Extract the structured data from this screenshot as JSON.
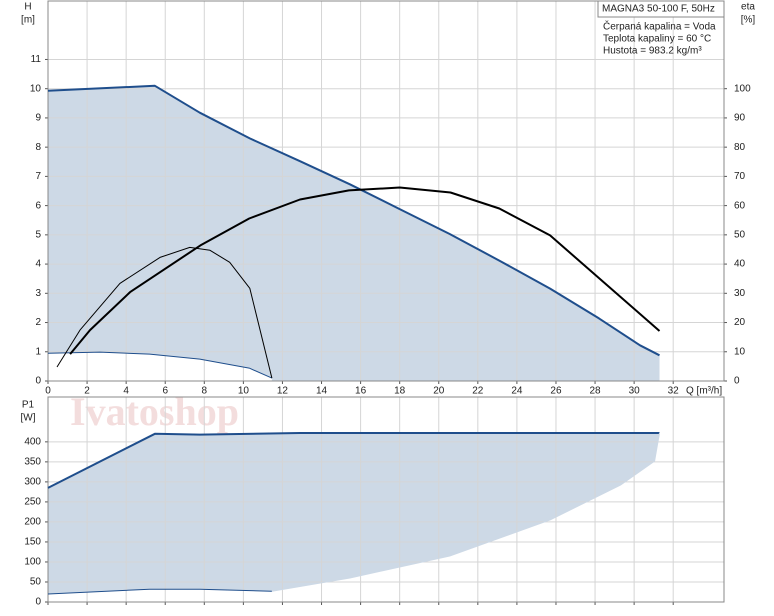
{
  "chart_data": [
    {
      "type": "line",
      "ylabel": "H",
      "yunit": "[m]",
      "y2label": "eta",
      "y2unit": "[%]",
      "xlabel": "Q [m³/h]",
      "info_title": "MAGNA3 50-100 F, 50Hz",
      "info_lines": [
        "Čerpaná kapalina = Voda",
        "Teplota kapaliny = 60 °C",
        "Hustota = 983.2 kg/m³"
      ],
      "xlim": [
        0,
        34.6
      ],
      "xticks": [
        0,
        2,
        4,
        6,
        8,
        10,
        12,
        14,
        16,
        18,
        20,
        22,
        24,
        26,
        28,
        30,
        32
      ],
      "ylim": [
        0,
        13
      ],
      "yticks": [
        0,
        1,
        2,
        3,
        4,
        5,
        6,
        7,
        8,
        9,
        10,
        11
      ],
      "y2lim": [
        0,
        130
      ],
      "y2ticks": [
        0,
        10,
        20,
        30,
        40,
        50,
        60,
        70,
        80,
        90,
        100
      ],
      "grid": true,
      "show_xtick_labels": true,
      "fill_color": "#cdd9e6",
      "series": [
        {
          "color": "#1f4e8c",
          "width": 2,
          "x": [
            0,
            5.47,
            7.77,
            10.33,
            12.9,
            15.45,
            18.0,
            20.56,
            23.1,
            25.7,
            28.2,
            30.3,
            31.3
          ],
          "values": [
            9.93,
            10.1,
            9.18,
            8.3,
            7.52,
            6.73,
            5.88,
            5.03,
            4.12,
            3.16,
            2.14,
            1.22,
            0.88
          ]
        },
        {
          "color": "#1f4e8c",
          "width": 1,
          "x": [
            0,
            2.66,
            5.2,
            7.77,
            10.3,
            11.46
          ],
          "values": [
            0.95,
            0.99,
            0.92,
            0.75,
            0.44,
            0.1
          ]
        },
        {
          "color": "#000000",
          "width": 2,
          "axis": "y2",
          "x": [
            1.13,
            2.15,
            4.2,
            7.8,
            10.3,
            12.9,
            15.4,
            18.0,
            20.6,
            23.1,
            25.7,
            28.2,
            31.3
          ],
          "values": [
            9.2,
            17.4,
            30.4,
            46.4,
            55.6,
            62.1,
            65.2,
            66.2,
            64.5,
            59,
            49.8,
            35.2,
            17.1
          ]
        },
        {
          "color": "#000000",
          "width": 1,
          "axis": "y2",
          "x": [
            0.46,
            1.64,
            3.68,
            5.73,
            7.26,
            8.29,
            9.3,
            10.33,
            11.46
          ],
          "values": [
            4.8,
            17.4,
            33.4,
            42.3,
            45.7,
            44.7,
            40.6,
            31.7,
            1.0
          ]
        }
      ]
    },
    {
      "type": "line",
      "ylabel": "P1",
      "yunit": "[W]",
      "watermark": "Ivatoshop",
      "xlim": [
        0,
        34.6
      ],
      "xticks": [
        0,
        2,
        4,
        6,
        8,
        10,
        12,
        14,
        16,
        18,
        20,
        22,
        24,
        26,
        28,
        30,
        32
      ],
      "ylim": [
        0,
        512
      ],
      "yticks": [
        0,
        50,
        100,
        150,
        200,
        250,
        300,
        350,
        400
      ],
      "grid": true,
      "show_xtick_labels": false,
      "fill_color": "#cdd9e6",
      "series": [
        {
          "color": "#1f4e8c",
          "width": 2,
          "x": [
            0,
            5.47,
            7.77,
            12.9,
            31.3
          ],
          "values": [
            285,
            420,
            418,
            422,
            422
          ]
        },
        {
          "color": "#1f4e8c",
          "width": 1,
          "x": [
            0,
            5.2,
            7.77,
            11.46
          ],
          "values": [
            20,
            32,
            32,
            27
          ]
        },
        {
          "color": "#cdd9e6",
          "width": 1,
          "x": [
            11.46,
            15.45,
            20.56,
            25.7,
            29.3,
            31.05,
            31.3
          ],
          "values": [
            27,
            60,
            115,
            205,
            292,
            352,
            422
          ]
        }
      ]
    }
  ]
}
